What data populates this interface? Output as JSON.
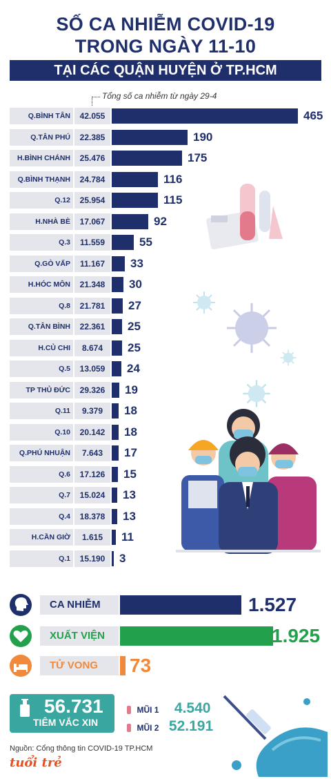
{
  "header": {
    "title_line1": "SỐ CA NHIỄM COVID-19",
    "title_line2": "TRONG NGÀY 11-10",
    "banner": "TẠI CÁC QUẬN HUYỆN Ở TP.HCM",
    "total_note": "Tổng số ca nhiễm từ ngày 29-4"
  },
  "chart_data": {
    "type": "bar",
    "orientation": "horizontal",
    "categories": [
      "Q.BÌNH TÂN",
      "Q.TÂN PHÚ",
      "H.BÌNH CHÁNH",
      "Q.BÌNH THẠNH",
      "Q.12",
      "H.NHÀ BÈ",
      "Q.3",
      "Q.GÒ VẤP",
      "H.HÓC MÔN",
      "Q.8",
      "Q.TÂN BÌNH",
      "H.CỦ CHI",
      "Q.5",
      "TP THỦ ĐỨC",
      "Q.11",
      "Q.10",
      "Q.PHÚ NHUẬN",
      "Q.6",
      "Q.7",
      "Q.4",
      "H.CẦN GIỜ",
      "Q.1"
    ],
    "totals": [
      "42.055",
      "22.385",
      "25.476",
      "24.784",
      "25.954",
      "17.067",
      "11.559",
      "11.167",
      "21.348",
      "21.781",
      "22.361",
      "8.674",
      "13.059",
      "29.326",
      "9.379",
      "20.142",
      "7.643",
      "17.126",
      "15.024",
      "18.378",
      "1.615",
      "15.190"
    ],
    "values": [
      465,
      190,
      175,
      116,
      115,
      92,
      55,
      33,
      30,
      27,
      25,
      25,
      24,
      19,
      18,
      18,
      17,
      15,
      13,
      13,
      11,
      3
    ],
    "color": "#1f2f6b"
  },
  "summary": [
    {
      "label": "CA NHIỄM",
      "value": "1.527",
      "number": 1527,
      "color": "#1f2f6b",
      "icon": "head-icon"
    },
    {
      "label": "XUẤT VIỆN",
      "value": "1.925",
      "number": 1925,
      "color": "#22a04b",
      "icon": "heart-icon"
    },
    {
      "label": "TỬ VONG",
      "value": "73",
      "number": 73,
      "color": "#f0893b",
      "icon": "bed-icon"
    }
  ],
  "vaccine": {
    "total": "56.731",
    "label": "TIÊM VẮC XIN",
    "dose1_label": "MŨI 1",
    "dose1_value": "4.540",
    "dose2_label": "MŨI 2",
    "dose2_value": "52.191"
  },
  "source": "Nguồn: Cổng thông tin COVID-19 TP.HCM",
  "logo": "tuổi trẻ"
}
